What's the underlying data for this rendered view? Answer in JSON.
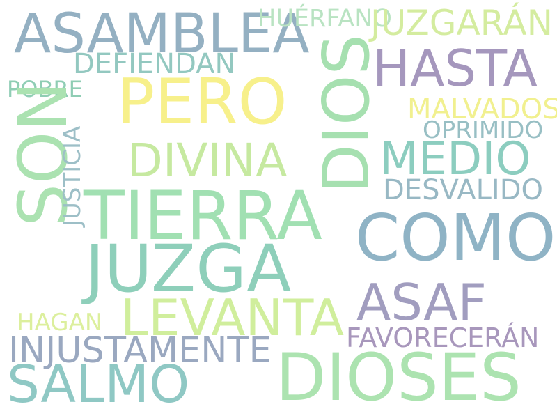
{
  "words": [
    {
      "text": "ASAMBLEA",
      "color": "#94b0c2"
    },
    {
      "text": "HUÉRFANO",
      "color": "#b9e3c2"
    },
    {
      "text": "JUZGARÁN",
      "color": "#d4ec9f"
    },
    {
      "text": "DEFIENDAN",
      "color": "#93c8c0"
    },
    {
      "text": "HASTA",
      "color": "#a597bd"
    },
    {
      "text": "POBRE",
      "color": "#8fcdb4"
    },
    {
      "text": "PERO",
      "color": "#f7f08b"
    },
    {
      "text": "DIOS",
      "color": "#a6e0b0"
    },
    {
      "text": "MALVADOS",
      "color": "#f1f08f"
    },
    {
      "text": "OPRIMIDO",
      "color": "#98bfc4"
    },
    {
      "text": "DIVINA",
      "color": "#c6e9a0"
    },
    {
      "text": "MEDIO",
      "color": "#8ccdbf"
    },
    {
      "text": "SON",
      "color": "#abe2b1"
    },
    {
      "text": "JUSTICIA",
      "color": "#9dbfc7"
    },
    {
      "text": "DESVALIDO",
      "color": "#98b8c4"
    },
    {
      "text": "TIERRA",
      "color": "#a1e0b2"
    },
    {
      "text": "COMO",
      "color": "#8fb3c5"
    },
    {
      "text": "JUZGA",
      "color": "#8ecfba"
    },
    {
      "text": "ASAF",
      "color": "#a19dbf"
    },
    {
      "text": "LEVANTA",
      "color": "#d0ee9c"
    },
    {
      "text": "HAGAN",
      "color": "#dcef9d"
    },
    {
      "text": "FAVORECERÁN",
      "color": "#a897bc"
    },
    {
      "text": "INJUSTAMENTE",
      "color": "#9aa8c0"
    },
    {
      "text": "SALMO",
      "color": "#8fc8c4"
    },
    {
      "text": "DIOSES",
      "color": "#ace3b0"
    }
  ]
}
